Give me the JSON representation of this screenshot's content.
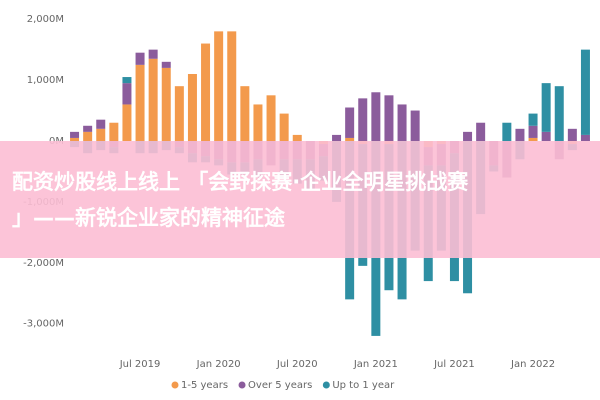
{
  "chart_data": {
    "type": "stacked-bar",
    "categories": [
      null,
      null,
      null,
      null,
      null,
      "Jul 2019",
      null,
      null,
      null,
      null,
      null,
      "Jan 2020",
      null,
      null,
      null,
      null,
      null,
      "Jul 2020",
      null,
      null,
      null,
      null,
      null,
      "Jan 2021",
      null,
      null,
      null,
      null,
      null,
      "Jul 2021",
      null,
      null,
      null,
      null,
      null,
      "Jan 2022",
      null,
      null,
      null,
      null
    ],
    "series": [
      {
        "name": "1-5 years",
        "color": "#f39a4c",
        "values": [
          50,
          150,
          200,
          300,
          600,
          1250,
          1350,
          1200,
          900,
          1100,
          1600,
          1800,
          1800,
          900,
          600,
          750,
          450,
          100,
          0,
          -50,
          0,
          50,
          -50,
          0,
          -50,
          0,
          0,
          -100,
          -50,
          0,
          0,
          0,
          0,
          0,
          0,
          50,
          0,
          0,
          -50,
          0
        ]
      },
      {
        "name": "Over 5 years",
        "color": "#8b5c9c",
        "values": [
          100,
          100,
          150,
          -100,
          350,
          200,
          150,
          100,
          -100,
          -200,
          -250,
          -300,
          -350,
          -350,
          -300,
          -400,
          -300,
          -300,
          -300,
          -200,
          100,
          500,
          700,
          800,
          750,
          600,
          500,
          -300,
          -350,
          -200,
          150,
          300,
          -400,
          -600,
          200,
          200,
          150,
          -300,
          200,
          100
        ]
      },
      {
        "name": "Up to 1 year",
        "color": "#2e8fa3",
        "values": [
          -100,
          -200,
          -150,
          -100,
          100,
          -200,
          -200,
          -150,
          -100,
          -150,
          -100,
          -100,
          -200,
          -200,
          -300,
          0,
          -300,
          -400,
          -500,
          -400,
          -1000,
          -2600,
          -2000,
          -3200,
          -2400,
          -2600,
          -1800,
          -1900,
          -1400,
          -2100,
          -2500,
          -1200,
          -100,
          300,
          -300,
          200,
          800,
          900,
          -100,
          1400
        ]
      }
    ],
    "ylim": [
      -3300,
      2200
    ],
    "yticks": [
      {
        "value": 2000,
        "label": "2,000M"
      },
      {
        "value": 1000,
        "label": "1,000M"
      },
      {
        "value": 0,
        "label": "0M"
      },
      {
        "value": -1000,
        "label": "-1,000M"
      },
      {
        "value": -2000,
        "label": "-2,000M"
      },
      {
        "value": -3000,
        "label": "-3,000M"
      }
    ]
  },
  "banner": {
    "lines": [
      "配资炒股线上线上 「会野探赛·企业全明星挑战赛",
      "」——新锐企业家的精神征途"
    ]
  }
}
